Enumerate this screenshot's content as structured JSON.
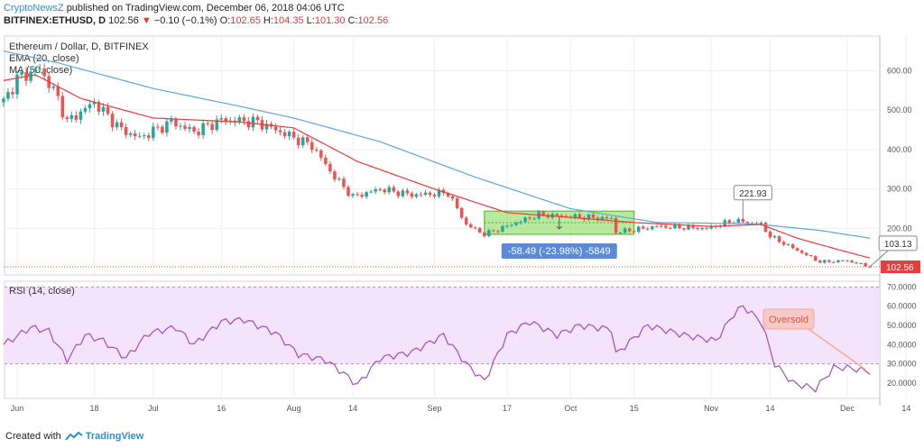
{
  "header": {
    "author": "CryptoNewsZ",
    "published_text": "published on TradingView.com, December 06, 2018 04:06 UTC",
    "symbol": "BITFINEX:ETHUSD, D",
    "last": "102.56",
    "change_arrow": "▼",
    "change": "−0.10 (−0.1%)",
    "o_label": "O:",
    "o_value": "102.65",
    "h_label": "H:",
    "h_value": "104.35",
    "l_label": "L:",
    "l_value": "101.30",
    "c_label": "C:",
    "c_value": "102.56"
  },
  "footer": {
    "created_with": "Created with",
    "brand": "TradingView"
  },
  "colors": {
    "up": "#26a69a",
    "down": "#ef5350",
    "ema": "#f0383b",
    "ma": "#5fa7d8",
    "rsi": "#a24cc2",
    "rsi_band": "#f3e3fb",
    "selection": "#7bd94d",
    "measure_label": "#5b8ad6",
    "oversold": "#f9a98e",
    "price_tag": "#e2403f"
  },
  "chart_data": [
    {
      "type": "candlestick",
      "title": "Ethereum / Dollar, D, BITFINEX",
      "indicators": [
        "EMA (20, close)",
        "MA (50, close)"
      ],
      "y_ticks": [
        "600.00",
        "500.00",
        "400.00",
        "300.00",
        "200.00"
      ],
      "ylim": [
        82,
        688
      ],
      "x_ticks": [
        "Jun",
        "18",
        "Jul",
        "16",
        "Aug",
        "14",
        "Sep",
        "17",
        "Oct",
        "15",
        "Nov",
        "14",
        "Dec",
        "14"
      ],
      "x_tick_dates": [
        "2018-06-01",
        "2018-06-18",
        "2018-07-01",
        "2018-07-16",
        "2018-08-01",
        "2018-08-14",
        "2018-09-01",
        "2018-09-17",
        "2018-10-01",
        "2018-10-15",
        "2018-11-01",
        "2018-11-14",
        "2018-12-01",
        "2018-12-14"
      ],
      "close_anchors": [
        {
          "date": "2018-05-29",
          "close": 520
        },
        {
          "date": "2018-06-01",
          "close": 580
        },
        {
          "date": "2018-06-06",
          "close": 605
        },
        {
          "date": "2018-06-10",
          "close": 530
        },
        {
          "date": "2018-06-12",
          "close": 470
        },
        {
          "date": "2018-06-18",
          "close": 520
        },
        {
          "date": "2018-06-24",
          "close": 450
        },
        {
          "date": "2018-06-28",
          "close": 430
        },
        {
          "date": "2018-07-05",
          "close": 470
        },
        {
          "date": "2018-07-10",
          "close": 445
        },
        {
          "date": "2018-07-16",
          "close": 475
        },
        {
          "date": "2018-07-24",
          "close": 470
        },
        {
          "date": "2018-07-31",
          "close": 435
        },
        {
          "date": "2018-08-05",
          "close": 410
        },
        {
          "date": "2018-08-10",
          "close": 330
        },
        {
          "date": "2018-08-14",
          "close": 280
        },
        {
          "date": "2018-08-20",
          "close": 300
        },
        {
          "date": "2018-08-27",
          "close": 285
        },
        {
          "date": "2018-09-04",
          "close": 290
        },
        {
          "date": "2018-09-08",
          "close": 210
        },
        {
          "date": "2018-09-12",
          "close": 185
        },
        {
          "date": "2018-09-18",
          "close": 210
        },
        {
          "date": "2018-09-24",
          "close": 235
        },
        {
          "date": "2018-10-01",
          "close": 230
        },
        {
          "date": "2018-10-10",
          "close": 225
        },
        {
          "date": "2018-10-11",
          "close": 190
        },
        {
          "date": "2018-10-20",
          "close": 205
        },
        {
          "date": "2018-10-31",
          "close": 200
        },
        {
          "date": "2018-11-06",
          "close": 220
        },
        {
          "date": "2018-11-12",
          "close": 210
        },
        {
          "date": "2018-11-14",
          "close": 180
        },
        {
          "date": "2018-11-19",
          "close": 150
        },
        {
          "date": "2018-11-25",
          "close": 115
        },
        {
          "date": "2018-12-01",
          "close": 118
        },
        {
          "date": "2018-12-06",
          "close": 102.56
        }
      ],
      "ema_anchors": [
        {
          "date": "2018-05-29",
          "value": 575
        },
        {
          "date": "2018-06-05",
          "value": 590
        },
        {
          "date": "2018-06-15",
          "value": 530
        },
        {
          "date": "2018-07-01",
          "value": 480
        },
        {
          "date": "2018-07-20",
          "value": 470
        },
        {
          "date": "2018-08-01",
          "value": 455
        },
        {
          "date": "2018-08-15",
          "value": 370
        },
        {
          "date": "2018-09-01",
          "value": 300
        },
        {
          "date": "2018-09-17",
          "value": 240
        },
        {
          "date": "2018-10-01",
          "value": 228
        },
        {
          "date": "2018-10-15",
          "value": 215
        },
        {
          "date": "2018-11-01",
          "value": 205
        },
        {
          "date": "2018-11-12",
          "value": 210
        },
        {
          "date": "2018-11-20",
          "value": 175
        },
        {
          "date": "2018-12-01",
          "value": 140
        },
        {
          "date": "2018-12-06",
          "value": 125
        }
      ],
      "ma_anchors": [
        {
          "date": "2018-05-29",
          "value": 650
        },
        {
          "date": "2018-06-10",
          "value": 620
        },
        {
          "date": "2018-07-01",
          "value": 555
        },
        {
          "date": "2018-07-20",
          "value": 510
        },
        {
          "date": "2018-08-01",
          "value": 480
        },
        {
          "date": "2018-08-20",
          "value": 420
        },
        {
          "date": "2018-09-10",
          "value": 330
        },
        {
          "date": "2018-10-01",
          "value": 250
        },
        {
          "date": "2018-10-20",
          "value": 215
        },
        {
          "date": "2018-11-10",
          "value": 212
        },
        {
          "date": "2018-11-25",
          "value": 195
        },
        {
          "date": "2018-12-06",
          "value": 175
        }
      ],
      "price_label": "102.56",
      "callouts": [
        {
          "text": "221.93",
          "date": "2018-11-08",
          "price": 222
        },
        {
          "text": "103.13",
          "date": "2018-12-06",
          "price": 103
        }
      ],
      "measure": {
        "from_date": "2018-09-12",
        "to_date": "2018-10-15",
        "from_price": 244,
        "to_price": 185,
        "label": "-58.49 (-23.98%) -5849"
      }
    },
    {
      "type": "line",
      "title": "RSI (14, close)",
      "y_ticks": [
        "70.0000",
        "60.0000",
        "50.0000",
        "40.0000",
        "30.0000",
        "20.0000"
      ],
      "ylim": [
        12,
        73
      ],
      "overbought": 70,
      "oversold_level": 30,
      "annotation": "Oversold",
      "rsi_anchors": [
        {
          "date": "2018-05-29",
          "value": 40
        },
        {
          "date": "2018-06-04",
          "value": 49
        },
        {
          "date": "2018-06-08",
          "value": 47
        },
        {
          "date": "2018-06-12",
          "value": 32
        },
        {
          "date": "2018-06-16",
          "value": 45
        },
        {
          "date": "2018-06-20",
          "value": 42
        },
        {
          "date": "2018-06-25",
          "value": 33
        },
        {
          "date": "2018-06-30",
          "value": 46
        },
        {
          "date": "2018-07-06",
          "value": 49
        },
        {
          "date": "2018-07-10",
          "value": 40
        },
        {
          "date": "2018-07-16",
          "value": 52
        },
        {
          "date": "2018-07-21",
          "value": 53
        },
        {
          "date": "2018-07-28",
          "value": 46
        },
        {
          "date": "2018-08-02",
          "value": 35
        },
        {
          "date": "2018-08-08",
          "value": 32
        },
        {
          "date": "2018-08-12",
          "value": 25
        },
        {
          "date": "2018-08-15",
          "value": 19
        },
        {
          "date": "2018-08-20",
          "value": 33
        },
        {
          "date": "2018-08-27",
          "value": 36
        },
        {
          "date": "2018-09-03",
          "value": 45
        },
        {
          "date": "2018-09-08",
          "value": 30
        },
        {
          "date": "2018-09-12",
          "value": 21
        },
        {
          "date": "2018-09-17",
          "value": 45
        },
        {
          "date": "2018-09-22",
          "value": 52
        },
        {
          "date": "2018-09-28",
          "value": 45
        },
        {
          "date": "2018-10-03",
          "value": 50
        },
        {
          "date": "2018-10-10",
          "value": 48
        },
        {
          "date": "2018-10-11",
          "value": 35
        },
        {
          "date": "2018-10-18",
          "value": 50
        },
        {
          "date": "2018-10-26",
          "value": 45
        },
        {
          "date": "2018-11-02",
          "value": 42
        },
        {
          "date": "2018-11-06",
          "value": 56
        },
        {
          "date": "2018-11-08",
          "value": 60
        },
        {
          "date": "2018-11-12",
          "value": 52
        },
        {
          "date": "2018-11-15",
          "value": 30
        },
        {
          "date": "2018-11-19",
          "value": 20
        },
        {
          "date": "2018-11-24",
          "value": 17
        },
        {
          "date": "2018-11-28",
          "value": 28
        },
        {
          "date": "2018-12-01",
          "value": 28
        },
        {
          "date": "2018-12-06",
          "value": 26
        }
      ]
    }
  ]
}
